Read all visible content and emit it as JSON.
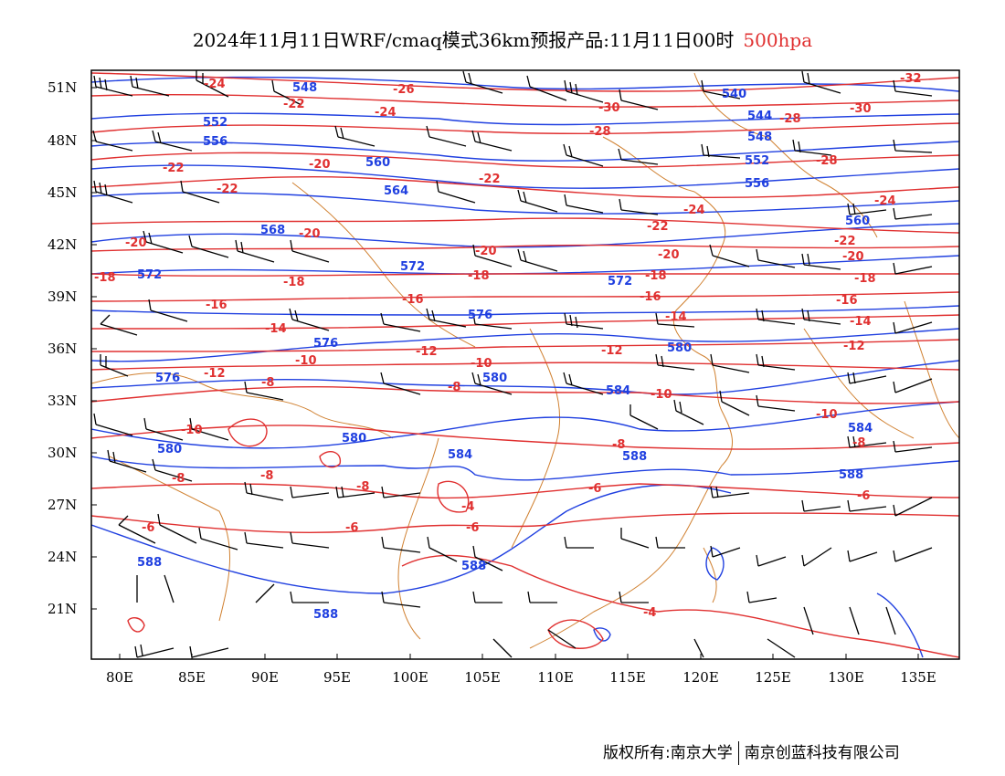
{
  "title": {
    "main": "2024年11月11日WRF/cmaq模式36km预报产品:11月11日00时",
    "level": "500hpa"
  },
  "colors": {
    "height_contours": "#2040e0",
    "temperature_contours": "#e03030",
    "coastline": "#d08030",
    "wind_barbs": "#000000"
  },
  "axes": {
    "lat_labels": [
      "51N",
      "48N",
      "45N",
      "42N",
      "39N",
      "36N",
      "33N",
      "30N",
      "27N",
      "24N",
      "21N"
    ],
    "lon_labels": [
      "80E",
      "85E",
      "90E",
      "95E",
      "100E",
      "105E",
      "110E",
      "115E",
      "120E",
      "125E",
      "130E",
      "135E"
    ]
  },
  "map_labels": {
    "height": [
      "548",
      "552",
      "556",
      "560",
      "564",
      "568",
      "572",
      "576",
      "580",
      "584",
      "588",
      "544",
      "540"
    ],
    "temperature": [
      "-32",
      "-30",
      "-28",
      "-26",
      "-24",
      "-22",
      "-20",
      "-18",
      "-16",
      "-14",
      "-12",
      "-10",
      "-8",
      "-6",
      "-4"
    ]
  },
  "footer": {
    "left": "版权所有:南京大学",
    "right": "南京创蓝科技有限公司"
  }
}
